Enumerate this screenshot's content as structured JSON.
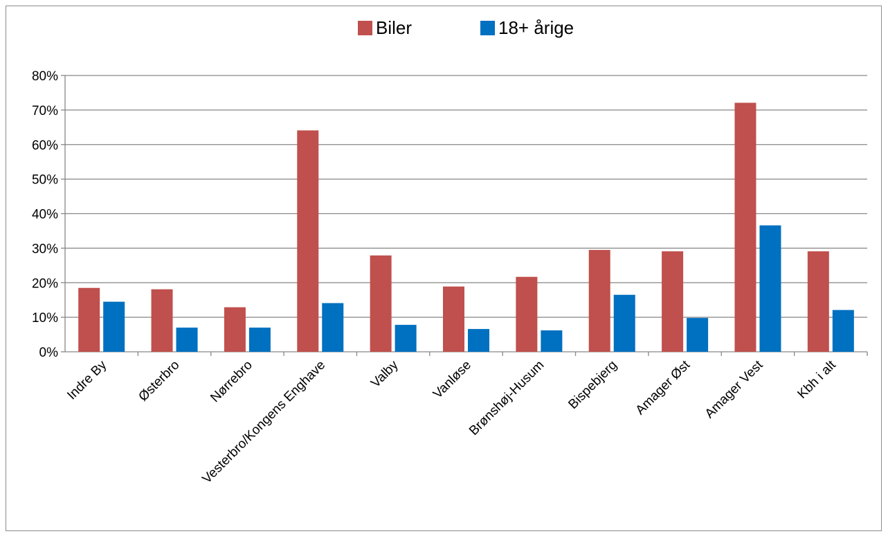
{
  "chart_data": {
    "type": "bar",
    "categories": [
      "Indre By",
      "Østerbro",
      "Nørrebro",
      "Vesterbro/Kongens Enghave",
      "Valby",
      "Vanløse",
      "Brønshøj-Husum",
      "Bispebjerg",
      "Amager Øst",
      "Amager Vest",
      "Kbh i alt"
    ],
    "series": [
      {
        "name": "Biler",
        "color": "#c0504d",
        "values": [
          18.5,
          18.1,
          12.9,
          64.1,
          27.9,
          18.9,
          21.7,
          29.5,
          29.1,
          72.1,
          29.1
        ]
      },
      {
        "name": "18+ årige",
        "color": "#0070c0",
        "values": [
          14.5,
          7.0,
          7.0,
          14.1,
          7.8,
          6.6,
          6.2,
          16.5,
          9.8,
          36.6,
          12.1
        ]
      }
    ],
    "yticks": [
      "0%",
      "10%",
      "20%",
      "30%",
      "40%",
      "50%",
      "60%",
      "70%",
      "80%"
    ],
    "ylim": [
      0,
      80
    ],
    "ylabel": "",
    "xlabel": "",
    "grid": true,
    "legend_position": "top-center"
  }
}
